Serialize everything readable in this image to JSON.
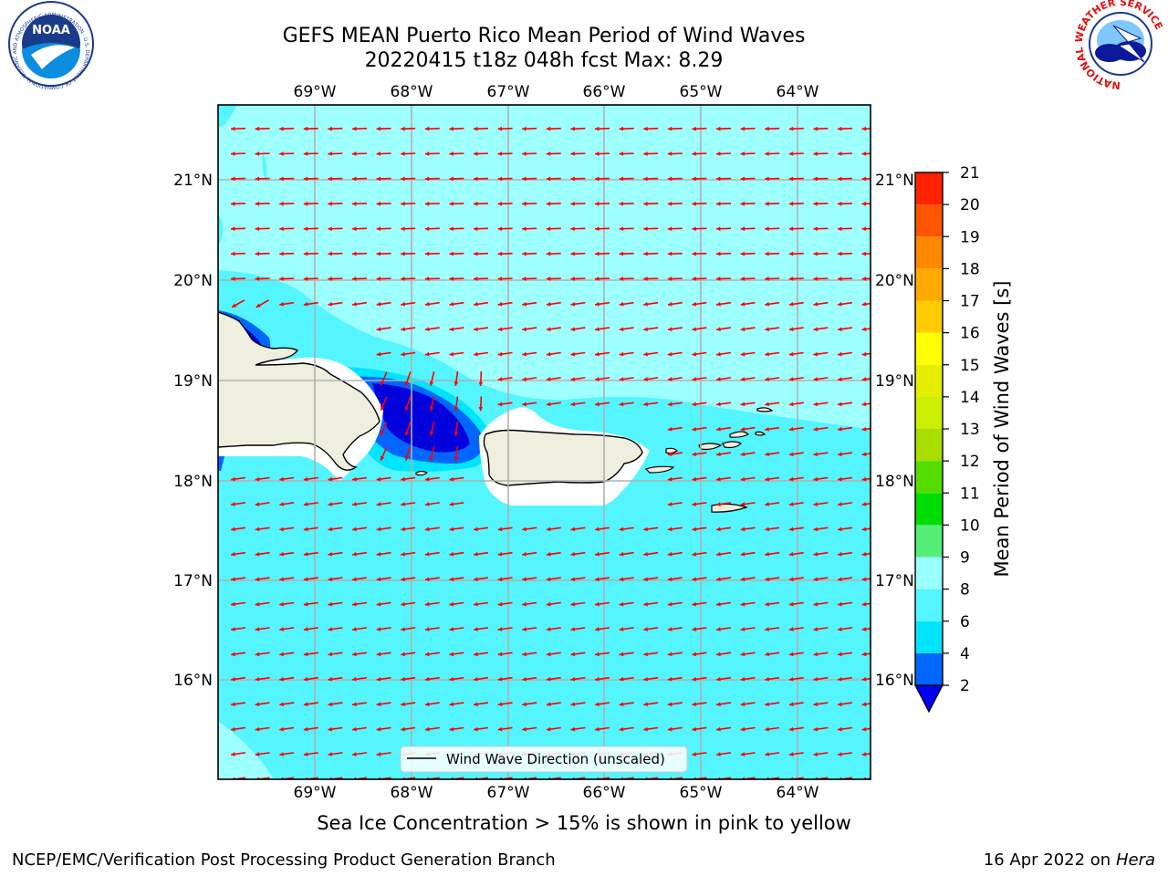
{
  "title_line1": "GEFS MEAN Puerto Rico Mean Period of Wind Waves",
  "title_line2": "20220415 t18z 048h fcst   Max: 8.29",
  "lon_labels": [
    "69°W",
    "68°W",
    "67°W",
    "66°W",
    "65°W",
    "64°W"
  ],
  "lat_labels": [
    "21°N",
    "20°N",
    "19°N",
    "18°N",
    "17°N",
    "16°N"
  ],
  "legend_label": "Wind Wave Direction (unscaled)",
  "colorbar": {
    "label": "Mean Period of Wind Waves [s]",
    "ticks": [
      "2",
      "4",
      "6",
      "8",
      "9",
      "10",
      "11",
      "12",
      "13",
      "14",
      "15",
      "16",
      "17",
      "18",
      "19",
      "20",
      "21"
    ],
    "colors": [
      "#0066ff",
      "#00e5ff",
      "#55f5ff",
      "#99ffff",
      "#55ee77",
      "#00dd00",
      "#55dd00",
      "#aadd00",
      "#ccee00",
      "#e5ee00",
      "#ffff00",
      "#ffcc00",
      "#ffaa00",
      "#ff8800",
      "#ff5500",
      "#ff2200"
    ],
    "extend_color": "#0000ee"
  },
  "colors": {
    "ocean_light": "#9effff",
    "ocean_mid": "#55f5ff",
    "ocean_dark": "#0066ff",
    "ocean_darkest": "#0000dd",
    "land": "#efefdf",
    "arrow": "#ff0000"
  },
  "caption": "Sea Ice Concentration > 15% is shown in pink to yellow",
  "footer_left": "NCEP/EMC/Verification Post Processing Product Generation Branch",
  "footer_right_prefix": "16 Apr 2022 on ",
  "footer_right_host": "Hera",
  "logos": {
    "noaa_text": "NOAA",
    "noaa_ring": "NATIONAL OCEANIC AND ATMOSPHERIC ADMINISTRATION · U.S. DEPARTMENT OF COMMERCE",
    "nws_ring": "NATIONAL WEATHER SERVICE"
  }
}
